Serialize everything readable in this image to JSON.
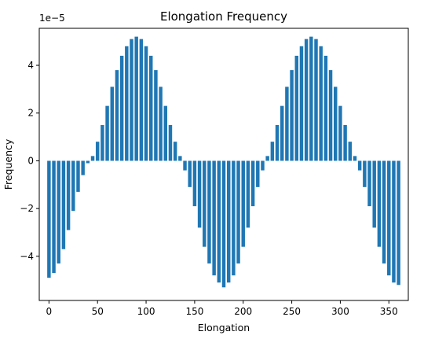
{
  "chart_data": {
    "type": "bar",
    "title": "Elongation Frequency",
    "xlabel": "Elongation",
    "ylabel": "Frequency",
    "y_offset_label": "1e−5",
    "y_multiplier": 1e-05,
    "xlim": [
      -10,
      370
    ],
    "ylim": [
      -5.85,
      5.55
    ],
    "xticks": [
      0,
      50,
      100,
      150,
      200,
      250,
      300,
      350
    ],
    "yticks": [
      -4,
      -2,
      0,
      2,
      4
    ],
    "ytick_labels": [
      "−4",
      "−2",
      "0",
      "2",
      "4"
    ],
    "grid": false,
    "color": "#1f77b4",
    "series": [
      {
        "x": [
          0,
          5,
          10,
          15,
          20,
          25,
          30,
          35,
          40,
          45,
          50,
          55,
          60,
          65,
          70,
          75,
          80,
          85,
          90,
          95,
          100,
          105,
          110,
          115,
          120,
          125,
          130,
          135,
          140,
          145,
          150,
          155,
          160,
          165,
          170,
          175,
          180,
          185,
          190,
          195,
          200,
          205,
          210,
          215,
          220,
          225,
          230,
          235,
          240,
          245,
          250,
          255,
          260,
          265,
          270,
          275,
          280,
          285,
          290,
          295,
          300,
          305,
          310,
          315,
          320,
          325,
          330,
          335,
          340,
          345,
          350,
          355,
          360
        ],
        "values": [
          -4.9,
          -4.7,
          -4.3,
          -3.7,
          -2.9,
          -2.1,
          -1.3,
          -0.6,
          -0.1,
          0.2,
          0.8,
          1.5,
          2.3,
          3.1,
          3.8,
          4.4,
          4.8,
          5.1,
          5.2,
          5.1,
          4.8,
          4.4,
          3.8,
          3.1,
          2.3,
          1.5,
          0.8,
          0.2,
          -0.4,
          -1.1,
          -1.9,
          -2.8,
          -3.6,
          -4.3,
          -4.8,
          -5.1,
          -5.3,
          -5.1,
          -4.8,
          -4.3,
          -3.6,
          -2.8,
          -1.9,
          -1.1,
          -0.4,
          0.2,
          0.8,
          1.5,
          2.3,
          3.1,
          3.8,
          4.4,
          4.8,
          5.1,
          5.2,
          5.1,
          4.8,
          4.4,
          3.8,
          3.1,
          2.3,
          1.5,
          0.8,
          0.2,
          -0.4,
          -1.1,
          -1.9,
          -2.8,
          -3.6,
          -4.3,
          -4.8,
          -5.1,
          -5.2
        ]
      }
    ]
  }
}
